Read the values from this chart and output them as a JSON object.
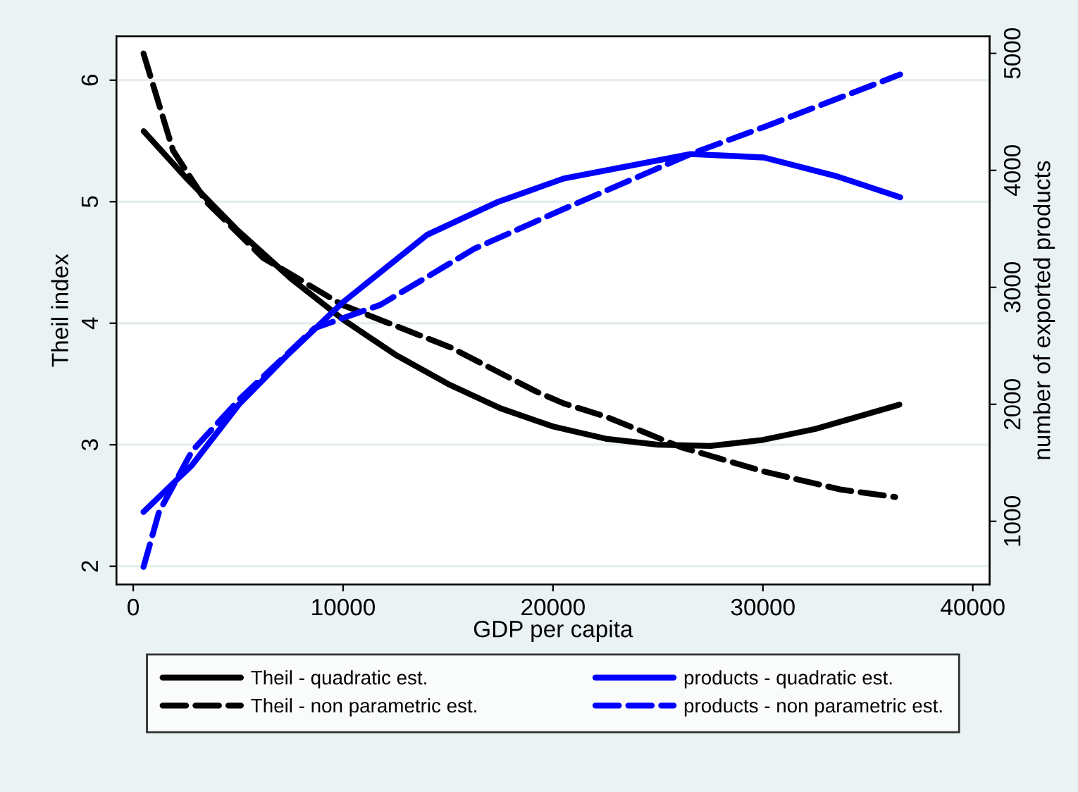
{
  "chart_data": {
    "type": "line",
    "xlabel": "GDP per capita",
    "ylabel": "Theil index",
    "y2label": "number of exported products",
    "xlim": [
      -800,
      40800
    ],
    "xticks": [
      0,
      10000,
      20000,
      30000,
      40000
    ],
    "ylim": [
      1.85,
      6.36
    ],
    "yticks": [
      2,
      3,
      4,
      5,
      6
    ],
    "y2lim": [
      460,
      5145
    ],
    "y2ticks": [
      1000,
      2000,
      3000,
      4000,
      5000
    ],
    "grid": "y",
    "legend": "bottom",
    "marker": "none",
    "series": [
      {
        "name": "Theil - quadratic est.",
        "color": "#000000",
        "line_style": "solid",
        "x": [
          500,
          2500,
          5000,
          7500,
          10000,
          12500,
          15000,
          17500,
          20000,
          22500,
          25000,
          27500,
          30000,
          32500,
          36500
        ],
        "values": [
          5.58,
          5.2,
          4.76,
          4.37,
          4.03,
          3.74,
          3.5,
          3.3,
          3.15,
          3.05,
          3.0,
          2.99,
          3.04,
          3.13,
          3.33
        ]
      },
      {
        "name": "Theil - non parametric est.",
        "color": "#000000",
        "line_style": "dashed",
        "x": [
          490,
          1900,
          3480,
          6170,
          9970,
          15130,
          19170,
          20510,
          22530,
          26100,
          30040,
          33740,
          36300
        ],
        "values": [
          6.22,
          5.42,
          5.0,
          4.54,
          4.15,
          3.8,
          3.44,
          3.34,
          3.23,
          2.98,
          2.78,
          2.63,
          2.57
        ]
      },
      {
        "name": "products - quadratic est.",
        "color": "#0000ff",
        "line_style": "solid",
        "axis": "y2",
        "x": [
          490,
          2800,
          5040,
          7280,
          9970,
          14010,
          17370,
          20510,
          26560,
          30040,
          33510,
          36540
        ],
        "values": [
          1080,
          1480,
          2000,
          2410,
          2870,
          3450,
          3730,
          3930,
          4140,
          4110,
          3950,
          3770
        ]
      },
      {
        "name": "products - non parametric est.",
        "color": "#0000ff",
        "line_style": "dashed",
        "axis": "y2",
        "x": [
          490,
          1230,
          2800,
          5040,
          8630,
          11770,
          16250,
          20510,
          26560,
          30040,
          36540
        ],
        "values": [
          610,
          1080,
          1600,
          2040,
          2650,
          2850,
          3330,
          3670,
          4140,
          4370,
          4820
        ]
      }
    ]
  }
}
